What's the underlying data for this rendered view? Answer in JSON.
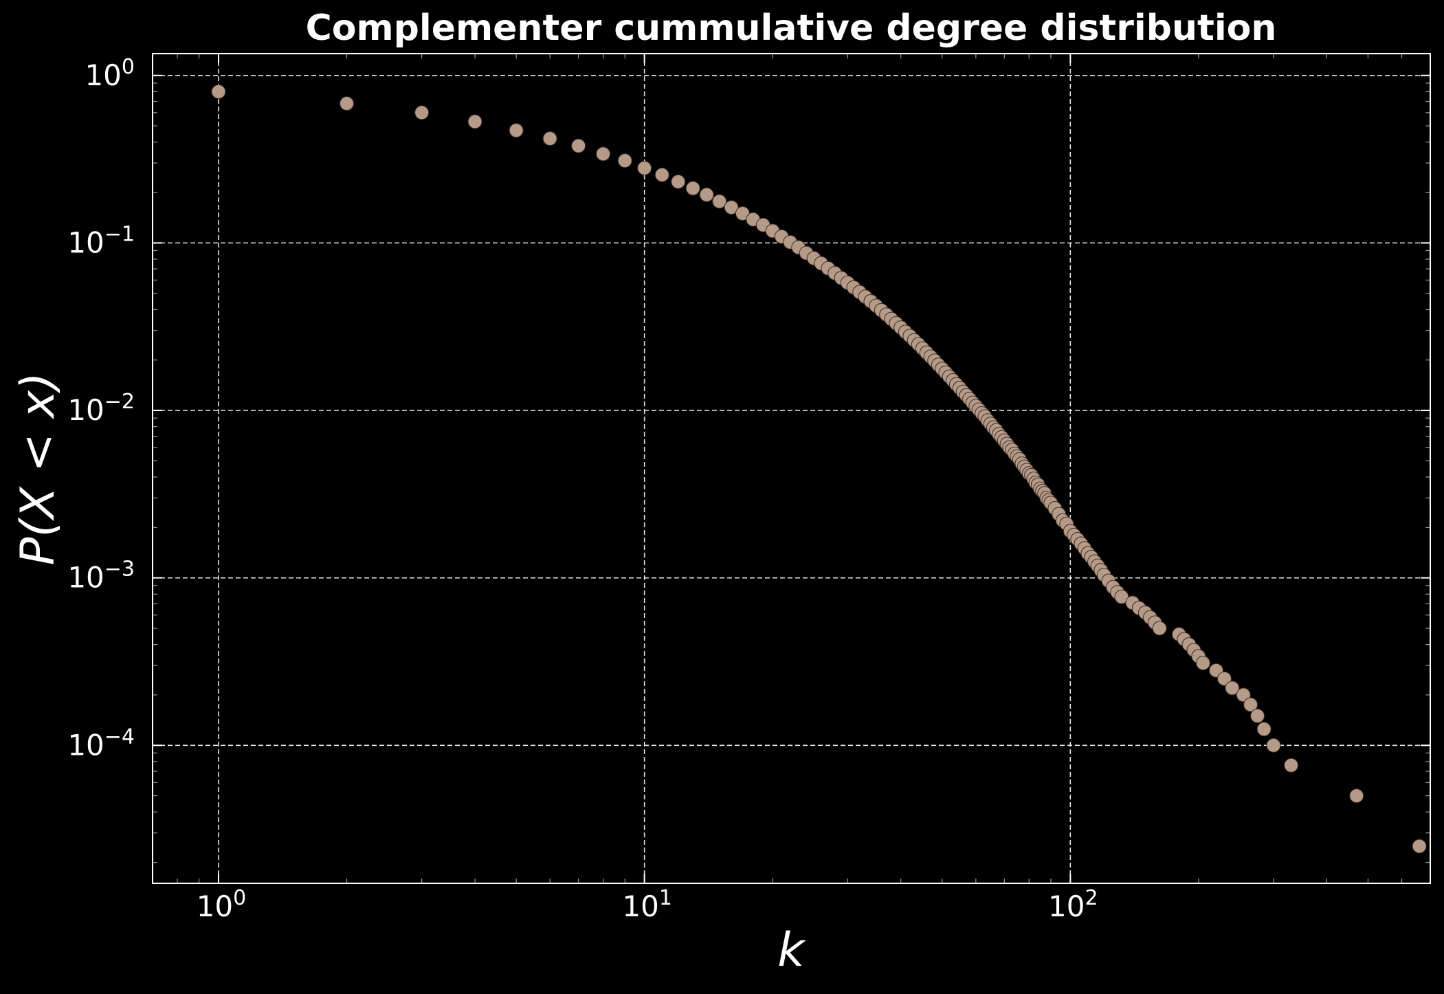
{
  "chart_data": {
    "type": "scatter",
    "title": "Complementer cummulative degree distribution",
    "xlabel": "k",
    "ylabel": "P(X < x)",
    "xscale": "log",
    "yscale": "log",
    "xlim": [
      0.7,
      700
    ],
    "ylim": [
      1.5e-05,
      1.35
    ],
    "grid": true,
    "marker_color": "#b59a88",
    "x_ticks": [
      {
        "base": "10",
        "exp": "0"
      },
      {
        "base": "10",
        "exp": "1"
      },
      {
        "base": "10",
        "exp": "2"
      }
    ],
    "y_ticks": [
      {
        "base": "10",
        "exp": "0"
      },
      {
        "base": "10",
        "exp": "−1"
      },
      {
        "base": "10",
        "exp": "−2"
      },
      {
        "base": "10",
        "exp": "−3"
      },
      {
        "base": "10",
        "exp": "−4"
      }
    ],
    "series": [
      {
        "points": [
          [
            1,
            0.8
          ],
          [
            2,
            0.68
          ],
          [
            3,
            0.6
          ],
          [
            4,
            0.53
          ],
          [
            5,
            0.47
          ],
          [
            6,
            0.42
          ],
          [
            7,
            0.38
          ],
          [
            8,
            0.34
          ],
          [
            9,
            0.31
          ],
          [
            10,
            0.28
          ],
          [
            11,
            0.255
          ],
          [
            12,
            0.232
          ],
          [
            13,
            0.212
          ],
          [
            14,
            0.194
          ],
          [
            15,
            0.177
          ],
          [
            16,
            0.163
          ],
          [
            17,
            0.15
          ],
          [
            18,
            0.138
          ],
          [
            19,
            0.128
          ],
          [
            20,
            0.118
          ],
          [
            21,
            0.109
          ],
          [
            22,
            0.101
          ],
          [
            23,
            0.094
          ],
          [
            24,
            0.087
          ],
          [
            25,
            0.081
          ],
          [
            26,
            0.0755
          ],
          [
            27,
            0.0705
          ],
          [
            28,
            0.066
          ],
          [
            29,
            0.0617
          ],
          [
            30,
            0.0578
          ],
          [
            31,
            0.0542
          ],
          [
            32,
            0.0508
          ],
          [
            33,
            0.0477
          ],
          [
            34,
            0.0448
          ],
          [
            35,
            0.0421
          ],
          [
            36,
            0.0396
          ],
          [
            37,
            0.0373
          ],
          [
            38,
            0.0351
          ],
          [
            39,
            0.0331
          ],
          [
            40,
            0.0312
          ],
          [
            41,
            0.0294
          ],
          [
            42,
            0.0278
          ],
          [
            43,
            0.0262
          ],
          [
            44,
            0.0248
          ],
          [
            45,
            0.0234
          ],
          [
            46,
            0.0221
          ],
          [
            47,
            0.0209
          ],
          [
            48,
            0.0198
          ],
          [
            49,
            0.0187
          ],
          [
            50,
            0.0177
          ],
          [
            51,
            0.0168
          ],
          [
            52,
            0.0159
          ],
          [
            53,
            0.0151
          ],
          [
            54,
            0.0143
          ],
          [
            55,
            0.0136
          ],
          [
            56,
            0.0129
          ],
          [
            57,
            0.0123
          ],
          [
            58,
            0.0117
          ],
          [
            59,
            0.0111
          ],
          [
            60,
            0.0106
          ],
          [
            61,
            0.0101
          ],
          [
            62,
            0.0096
          ],
          [
            63,
            0.0092
          ],
          [
            64,
            0.0087
          ],
          [
            65,
            0.0083
          ],
          [
            66,
            0.0079
          ],
          [
            67,
            0.0076
          ],
          [
            68,
            0.0072
          ],
          [
            69,
            0.0069
          ],
          [
            70,
            0.0066
          ],
          [
            71,
            0.0063
          ],
          [
            72,
            0.006
          ],
          [
            73,
            0.0058
          ],
          [
            74,
            0.0055
          ],
          [
            75,
            0.0053
          ],
          [
            76,
            0.0051
          ],
          [
            77,
            0.0048
          ],
          [
            78,
            0.0046
          ],
          [
            79,
            0.0044
          ],
          [
            80,
            0.0042
          ],
          [
            81,
            0.0041
          ],
          [
            82,
            0.0039
          ],
          [
            83,
            0.0037
          ],
          [
            84,
            0.0036
          ],
          [
            85,
            0.0034
          ],
          [
            86,
            0.0033
          ],
          [
            87,
            0.0032
          ],
          [
            88,
            0.003
          ],
          [
            89,
            0.0029
          ],
          [
            90,
            0.0028
          ],
          [
            92,
            0.0026
          ],
          [
            94,
            0.0024
          ],
          [
            96,
            0.0022
          ],
          [
            98,
            0.0021
          ],
          [
            100,
            0.0019
          ],
          [
            102,
            0.0018
          ],
          [
            104,
            0.0017
          ],
          [
            106,
            0.0016
          ],
          [
            108,
            0.0015
          ],
          [
            110,
            0.0014
          ],
          [
            112,
            0.00133
          ],
          [
            114,
            0.00125
          ],
          [
            116,
            0.00118
          ],
          [
            118,
            0.00111
          ],
          [
            120,
            0.00104
          ],
          [
            123,
            0.00096
          ],
          [
            126,
            0.00088
          ],
          [
            129,
            0.00082
          ],
          [
            132,
            0.00077
          ],
          [
            140,
            0.00071
          ],
          [
            145,
            0.00066
          ],
          [
            150,
            0.00062
          ],
          [
            154,
            0.00058
          ],
          [
            158,
            0.00054
          ],
          [
            162,
            0.0005
          ],
          [
            180,
            0.00046
          ],
          [
            185,
            0.00043
          ],
          [
            190,
            0.0004
          ],
          [
            195,
            0.00037
          ],
          [
            200,
            0.00034
          ],
          [
            205,
            0.00031
          ],
          [
            220,
            0.00028
          ],
          [
            230,
            0.00025
          ],
          [
            240,
            0.00022
          ],
          [
            255,
            0.0002
          ],
          [
            265,
            0.000175
          ],
          [
            275,
            0.00015
          ],
          [
            285,
            0.000125
          ],
          [
            300,
            0.0001
          ],
          [
            330,
            7.6e-05
          ],
          [
            470,
            5e-05
          ],
          [
            660,
            2.5e-05
          ]
        ]
      }
    ]
  }
}
